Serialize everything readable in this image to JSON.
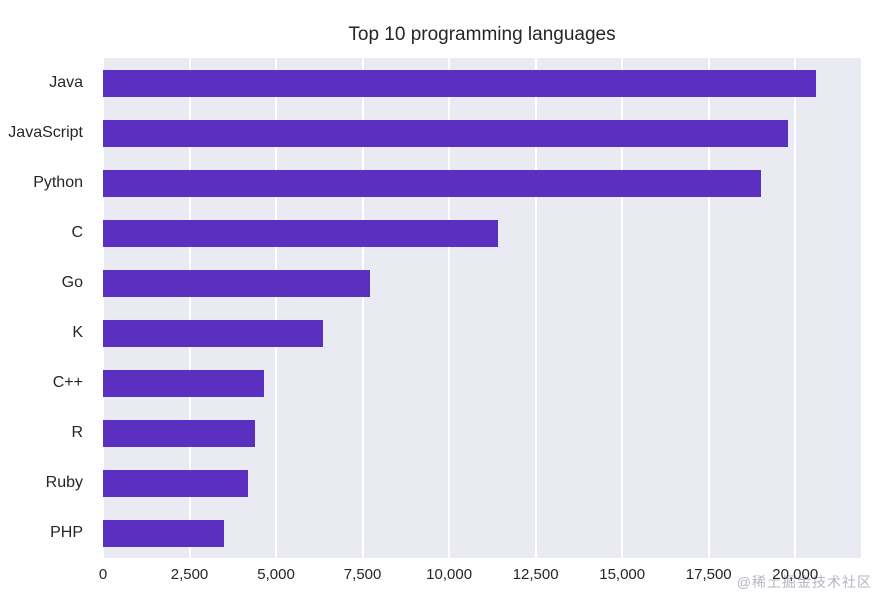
{
  "title": "Top 10 programming languages",
  "watermark": "@稀土掘金技术社区",
  "chart_data": {
    "type": "bar",
    "orientation": "horizontal",
    "title": "Top 10 programming languages",
    "categories": [
      "Java",
      "JavaScript",
      "Python",
      "C",
      "Go",
      "K",
      "C++",
      "R",
      "Ruby",
      "PHP"
    ],
    "values": [
      20600,
      19800,
      19000,
      11400,
      7700,
      6350,
      4650,
      4400,
      4200,
      3500
    ],
    "xlim": [
      0,
      21900
    ],
    "x_ticks": [
      0,
      2500,
      5000,
      7500,
      10000,
      12500,
      15000,
      17500,
      20000
    ],
    "x_tick_labels": [
      "0",
      "2,500",
      "5,000",
      "7,500",
      "10,000",
      "12,500",
      "15,000",
      "17,500",
      "20,000"
    ],
    "xlabel": "",
    "ylabel": "",
    "legend": null,
    "grid": true,
    "grid_color": "#ffffff",
    "plot_bg": "#eaeaf2",
    "bar_color": "#5b2fc0"
  }
}
